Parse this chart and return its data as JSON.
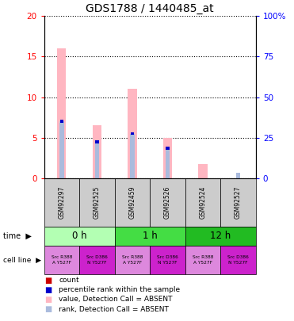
{
  "title": "GDS1788 / 1440485_at",
  "samples": [
    "GSM92297",
    "GSM92525",
    "GSM92459",
    "GSM92526",
    "GSM92524",
    "GSM92527"
  ],
  "absent_value_bars": [
    16.0,
    6.5,
    11.0,
    5.0,
    1.7,
    0.0
  ],
  "absent_rank_bars": [
    7.0,
    4.5,
    5.5,
    3.7,
    0.0,
    0.7
  ],
  "rank_marker_vals": [
    7.0,
    4.5,
    5.5,
    3.7,
    0.0,
    0.0
  ],
  "count_marker_vals": [
    0.0,
    0.0,
    0.0,
    0.0,
    0.0,
    0.0
  ],
  "left_ylim": [
    0,
    20
  ],
  "right_ylim": [
    0,
    100
  ],
  "left_yticks": [
    0,
    5,
    10,
    15,
    20
  ],
  "right_yticks": [
    0,
    25,
    50,
    75,
    100
  ],
  "right_yticklabels": [
    "0",
    "25",
    "50",
    "75",
    "100%"
  ],
  "time_groups": [
    {
      "label": "0 h",
      "start": 0,
      "end": 2,
      "color": "#b3ffb3"
    },
    {
      "label": "1 h",
      "start": 2,
      "end": 4,
      "color": "#44dd44"
    },
    {
      "label": "12 h",
      "start": 4,
      "end": 6,
      "color": "#22bb22"
    }
  ],
  "cell_lines": [
    {
      "text": "Src R388\nA Y527F",
      "color": "#dd88dd"
    },
    {
      "text": "Src D386\nN Y527F",
      "color": "#cc22cc"
    },
    {
      "text": "Src R388\nA Y527F",
      "color": "#dd88dd"
    },
    {
      "text": "Src D386\nN Y527F",
      "color": "#cc22cc"
    },
    {
      "text": "Src R388\nA Y527F",
      "color": "#dd88dd"
    },
    {
      "text": "Src D386\nN Y527F",
      "color": "#cc22cc"
    }
  ],
  "absent_value_color": "#ffb6c1",
  "absent_rank_color": "#aabbdd",
  "count_color": "#cc0000",
  "rank_color": "#0000cc",
  "sample_bg_color": "#cccccc",
  "absent_bar_width": 0.25,
  "rank_bar_width": 0.12
}
